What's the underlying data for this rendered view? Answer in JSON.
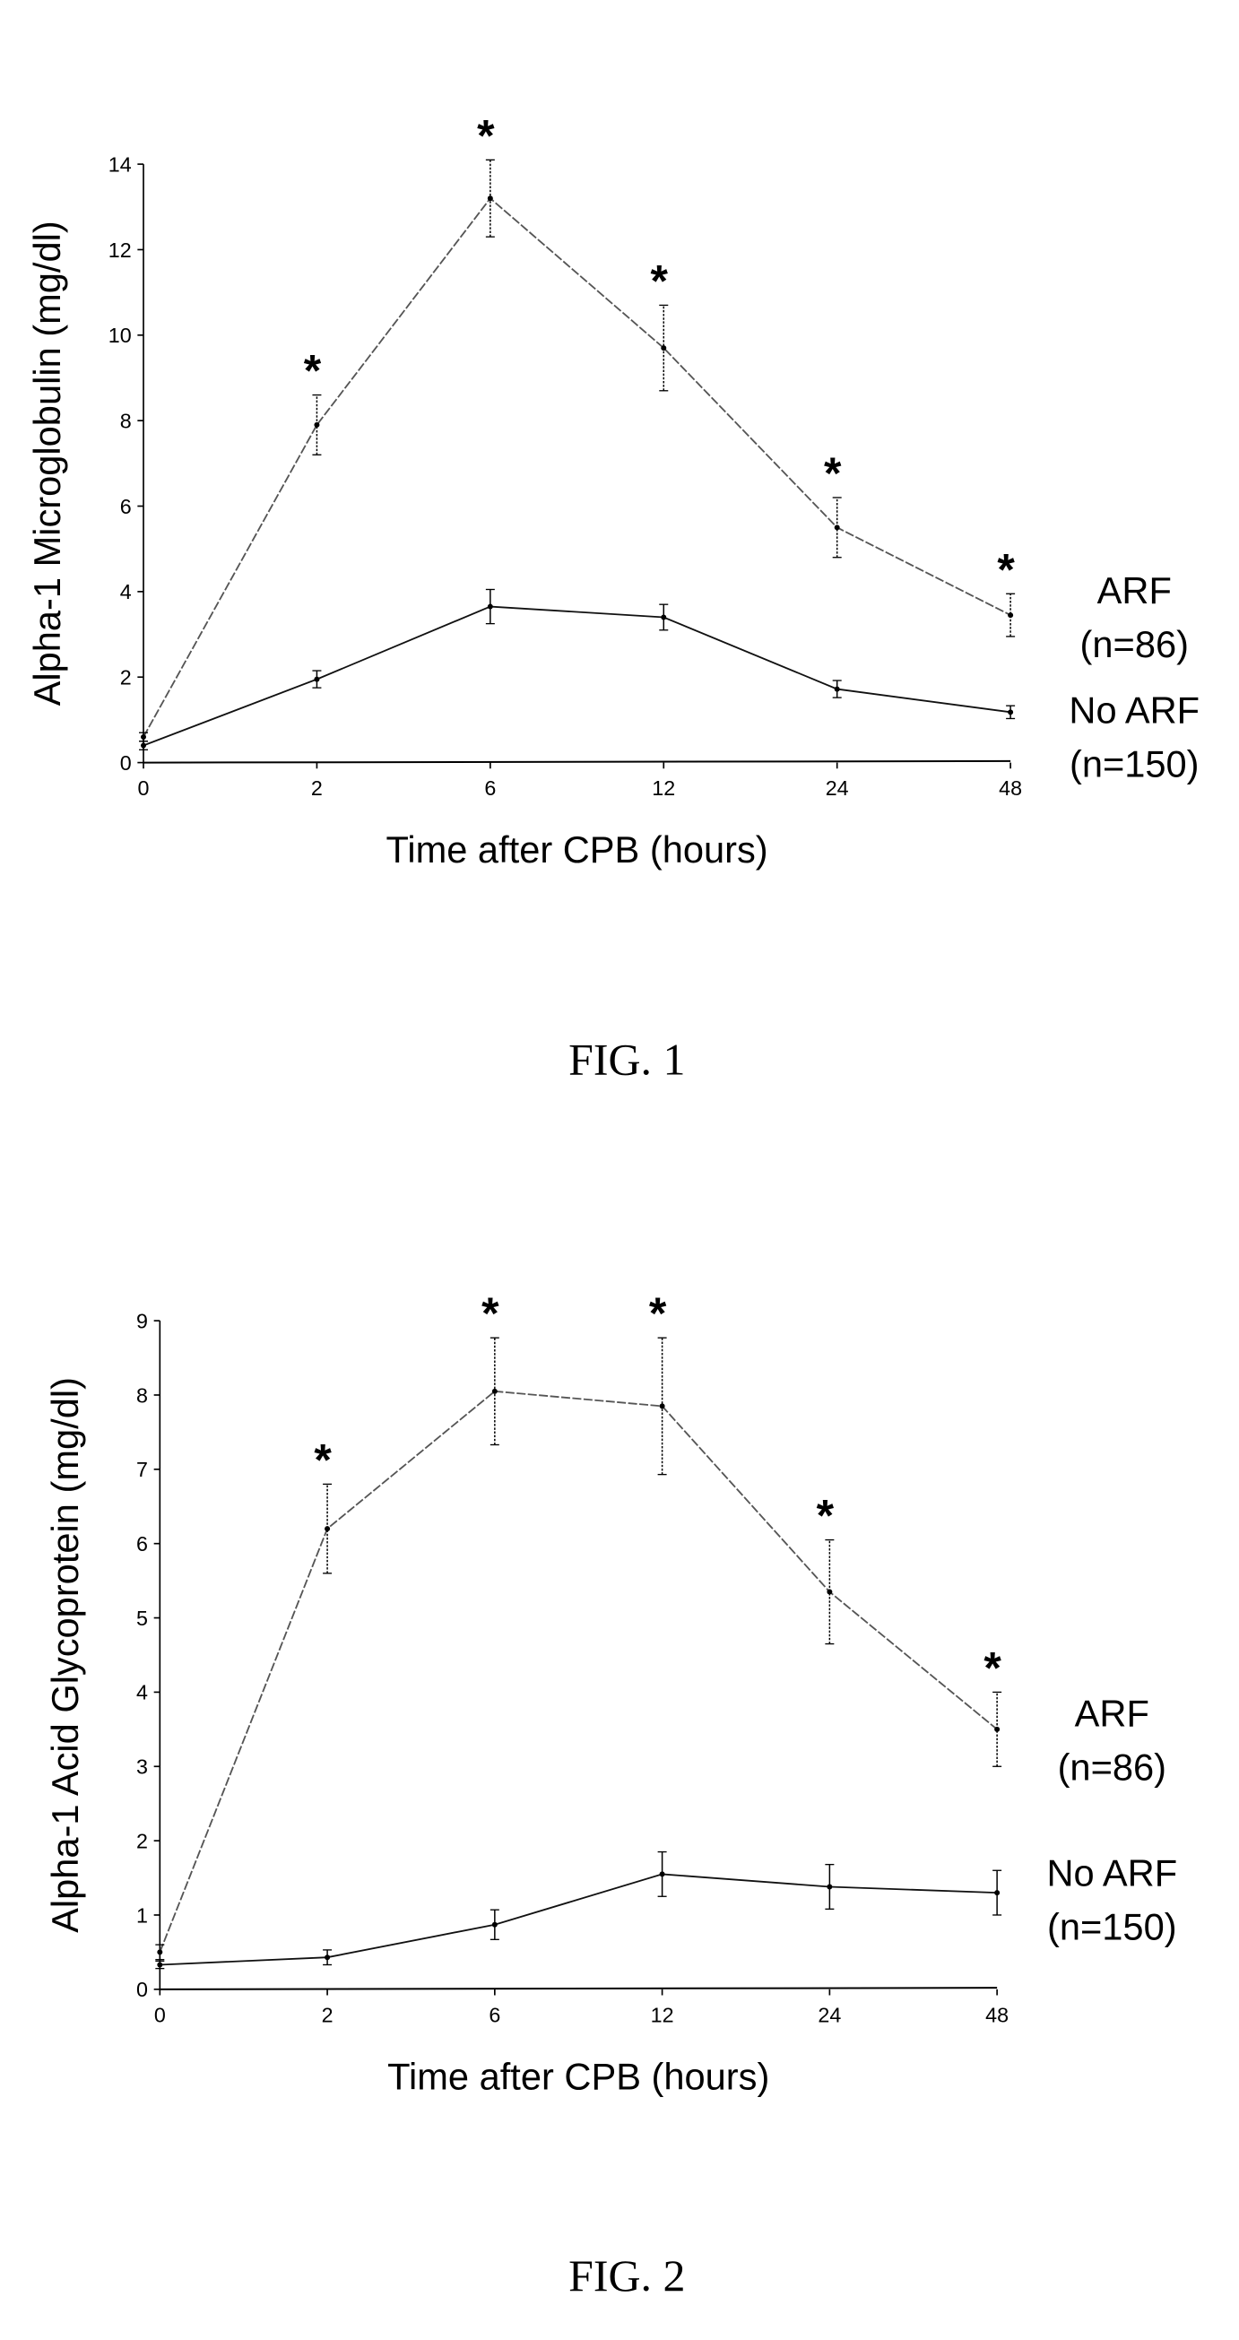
{
  "chart_data": [
    {
      "type": "line",
      "figure_label": "FIG. 1",
      "xlabel": "Time after CPB (hours)",
      "ylabel": "Alpha-1 Microglobulin (mg/dl)",
      "categories": [
        "0",
        "2",
        "6",
        "12",
        "24",
        "48"
      ],
      "ylim": [
        0,
        14
      ],
      "yticks": [
        "0",
        "2",
        "4",
        "6",
        "8",
        "10",
        "12",
        "14"
      ],
      "grid": false,
      "significance_marker": "*",
      "series": [
        {
          "name": "ARF",
          "n_label": "(n=86)",
          "values": [
            0.6,
            7.9,
            13.2,
            9.7,
            5.5,
            3.45
          ],
          "errors": [
            0.1,
            0.7,
            0.9,
            1.0,
            0.7,
            0.5
          ],
          "significant": [
            false,
            true,
            true,
            true,
            true,
            true
          ],
          "color": "#555555",
          "label_at": 4.0
        },
        {
          "name": "No ARF",
          "n_label": "(n=150)",
          "values": [
            0.4,
            1.95,
            3.65,
            3.4,
            1.72,
            1.18
          ],
          "errors": [
            0.1,
            0.2,
            0.4,
            0.3,
            0.2,
            0.15
          ],
          "significant": [
            false,
            false,
            false,
            false,
            false,
            false
          ],
          "color": "#111111",
          "label_at": 1.2
        }
      ]
    },
    {
      "type": "line",
      "figure_label": "FIG. 2",
      "xlabel": "Time after CPB (hours)",
      "ylabel": "Alpha-1 Acid Glycoprotein (mg/dl)",
      "categories": [
        "0",
        "2",
        "6",
        "12",
        "24",
        "48"
      ],
      "ylim": [
        0,
        9
      ],
      "yticks": [
        "0",
        "1",
        "2",
        "3",
        "4",
        "5",
        "6",
        "7",
        "8",
        "9"
      ],
      "grid": false,
      "significance_marker": "*",
      "series": [
        {
          "name": "ARF",
          "n_label": "(n=86)",
          "values": [
            0.5,
            6.2,
            8.05,
            7.85,
            5.35,
            3.5
          ],
          "errors": [
            0.1,
            0.6,
            0.72,
            0.92,
            0.7,
            0.5
          ],
          "significant": [
            false,
            true,
            true,
            true,
            true,
            true
          ],
          "color": "#555555",
          "label_at": 3.7
        },
        {
          "name": "No ARF",
          "n_label": "(n=150)",
          "values": [
            0.33,
            0.43,
            0.87,
            1.55,
            1.38,
            1.3
          ],
          "errors": [
            0.05,
            0.1,
            0.2,
            0.3,
            0.3,
            0.3
          ],
          "significant": [
            false,
            false,
            false,
            false,
            false,
            false
          ],
          "color": "#111111",
          "label_at": 1.55
        }
      ]
    }
  ]
}
